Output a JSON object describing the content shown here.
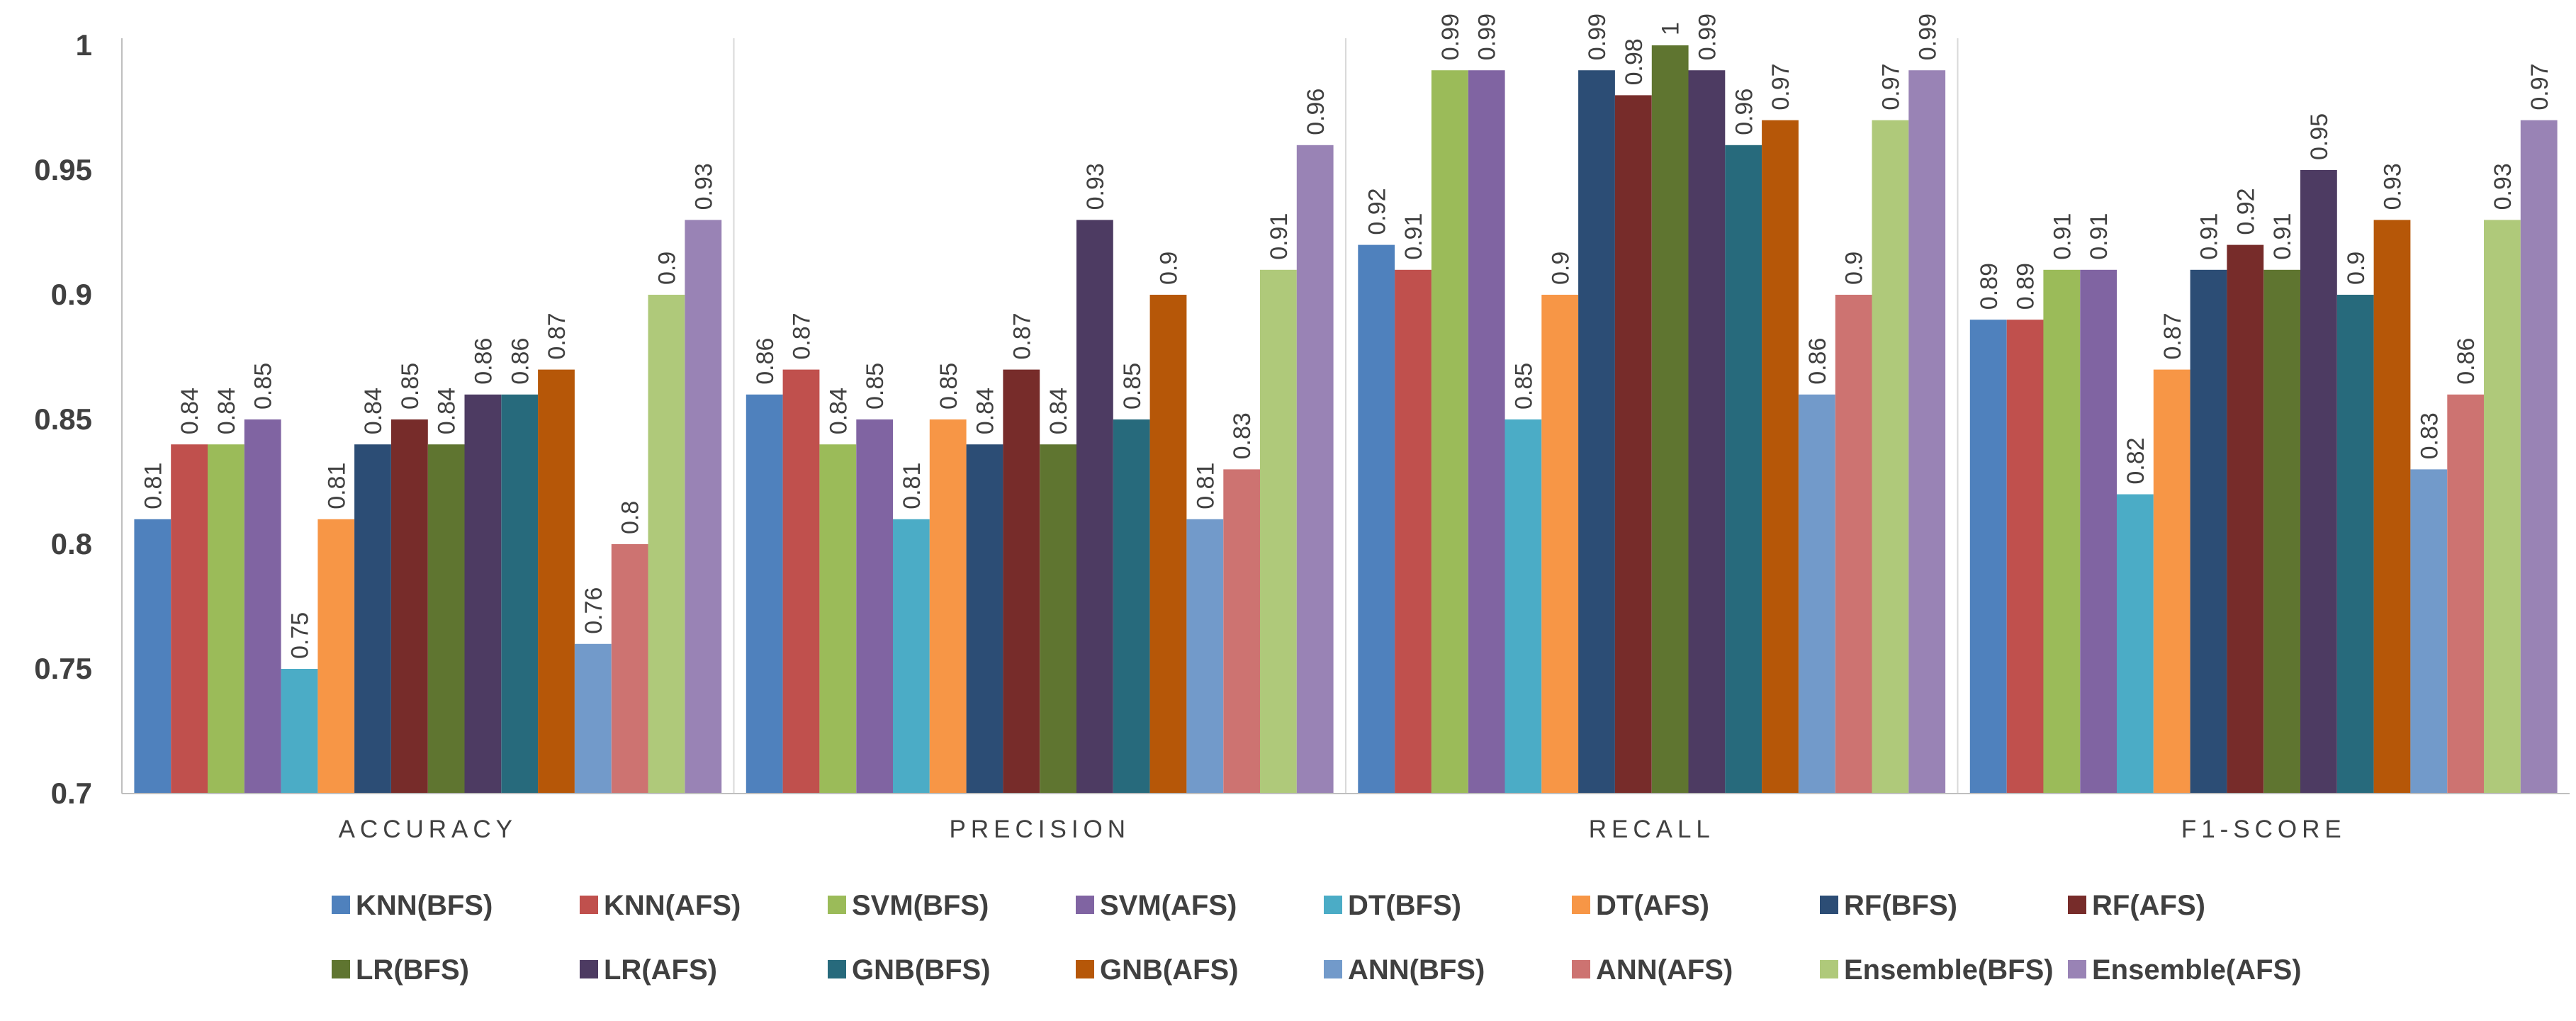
{
  "chart_data": {
    "type": "bar",
    "title": "",
    "xlabel": "",
    "ylabel": "",
    "ylim": [
      0.7,
      1.0
    ],
    "yticks": [
      "0.7",
      "0.75",
      "0.8",
      "0.85",
      "0.9",
      "0.95",
      "1"
    ],
    "ytick_values": [
      0.7,
      0.75,
      0.8,
      0.85,
      0.9,
      0.95,
      1.0
    ],
    "grid": "vertical separators",
    "legend_position": "bottom",
    "categories": [
      "ACCURACY",
      "PRECISION",
      "RECALL",
      "F1-SCORE"
    ],
    "series": [
      {
        "name": "KNN(BFS)",
        "color": "#4f81bd",
        "values": [
          0.81,
          0.86,
          0.92,
          0.89
        ],
        "labels": [
          "0.81",
          "0.86",
          "0.92",
          "0.89"
        ]
      },
      {
        "name": "KNN(AFS)",
        "color": "#c0504d",
        "values": [
          0.84,
          0.87,
          0.91,
          0.89
        ],
        "labels": [
          "0.84",
          "0.87",
          "0.91",
          "0.89"
        ]
      },
      {
        "name": "SVM(BFS)",
        "color": "#9bbb59",
        "values": [
          0.84,
          0.84,
          0.99,
          0.91
        ],
        "labels": [
          "0.84",
          "0.84",
          "0.99",
          "0.91"
        ]
      },
      {
        "name": "SVM(AFS)",
        "color": "#8064a2",
        "values": [
          0.85,
          0.85,
          0.99,
          0.91
        ],
        "labels": [
          "0.85",
          "0.85",
          "0.99",
          "0.91"
        ]
      },
      {
        "name": "DT(BFS)",
        "color": "#4bacc6",
        "values": [
          0.75,
          0.81,
          0.85,
          0.82
        ],
        "labels": [
          "0.75",
          "0.81",
          "0.85",
          "0.82"
        ]
      },
      {
        "name": "DT(AFS)",
        "color": "#f79646",
        "values": [
          0.81,
          0.85,
          0.9,
          0.87
        ],
        "labels": [
          "0.81",
          "0.85",
          "0.9",
          "0.87"
        ]
      },
      {
        "name": "RF(BFS)",
        "color": "#2c4d75",
        "values": [
          0.84,
          0.84,
          0.99,
          0.91
        ],
        "labels": [
          "0.84",
          "0.84",
          "0.99",
          "0.91"
        ]
      },
      {
        "name": "RF(AFS)",
        "color": "#772c2a",
        "values": [
          0.85,
          0.87,
          0.98,
          0.92
        ],
        "labels": [
          "0.85",
          "0.87",
          "0.98",
          "0.92"
        ]
      },
      {
        "name": "LR(BFS)",
        "color": "#5f7530",
        "values": [
          0.84,
          0.84,
          1.0,
          0.91
        ],
        "labels": [
          "0.84",
          "0.84",
          "1",
          "0.91"
        ]
      },
      {
        "name": "LR(AFS)",
        "color": "#4d3b62",
        "values": [
          0.86,
          0.93,
          0.99,
          0.95
        ],
        "labels": [
          "0.86",
          "0.93",
          "0.99",
          "0.95"
        ]
      },
      {
        "name": "GNB(BFS)",
        "color": "#276a7c",
        "values": [
          0.86,
          0.85,
          0.96,
          0.9
        ],
        "labels": [
          "0.86",
          "0.85",
          "0.96",
          "0.9"
        ]
      },
      {
        "name": "GNB(AFS)",
        "color": "#b65708",
        "values": [
          0.87,
          0.9,
          0.97,
          0.93
        ],
        "labels": [
          "0.87",
          "0.9",
          "0.97",
          "0.93"
        ]
      },
      {
        "name": "ANN(BFS)",
        "color": "#729aca",
        "values": [
          0.76,
          0.81,
          0.86,
          0.83
        ],
        "labels": [
          "0.76",
          "0.81",
          "0.86",
          "0.83"
        ]
      },
      {
        "name": "ANN(AFS)",
        "color": "#cd7371",
        "values": [
          0.8,
          0.83,
          0.9,
          0.86
        ],
        "labels": [
          "0.8",
          "0.83",
          "0.9",
          "0.86"
        ]
      },
      {
        "name": "Ensemble(BFS)",
        "color": "#afc97a",
        "values": [
          0.9,
          0.91,
          0.97,
          0.93
        ],
        "labels": [
          "0.9",
          "0.91",
          "0.97",
          "0.93"
        ]
      },
      {
        "name": "Ensemble(AFS)",
        "color": "#9983b5",
        "values": [
          0.93,
          0.96,
          0.99,
          0.97
        ],
        "labels": [
          "0.93",
          "0.96",
          "0.99",
          "0.97"
        ]
      }
    ]
  }
}
